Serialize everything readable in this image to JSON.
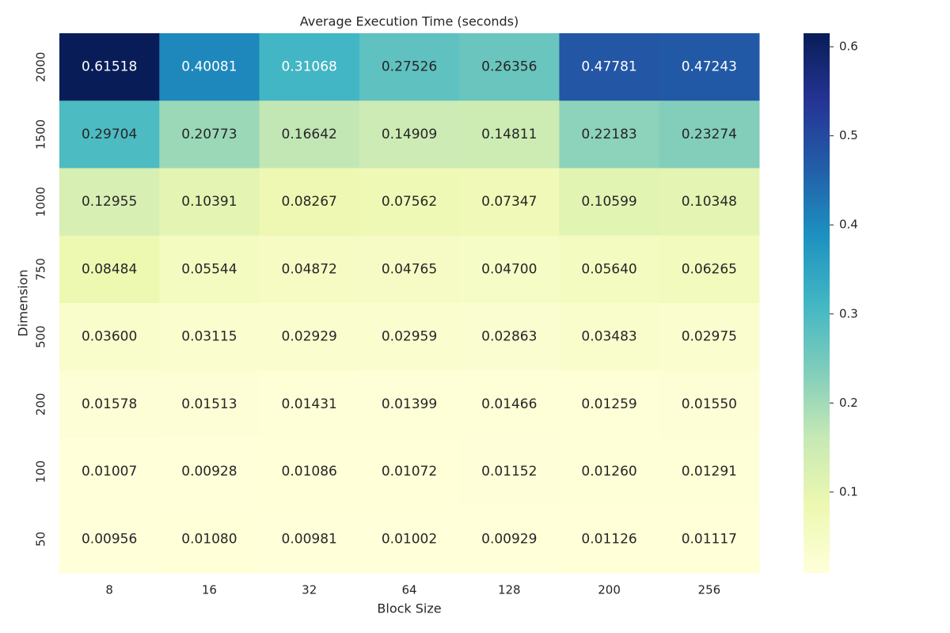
{
  "chart_data": {
    "type": "heatmap",
    "title": "Average Execution Time (seconds)",
    "x_label": "Block Size",
    "y_label": "Dimension",
    "x_categories": [
      8,
      16,
      32,
      64,
      128,
      200,
      256
    ],
    "y_categories": [
      2000,
      1500,
      1000,
      750,
      500,
      200,
      100,
      50
    ],
    "values": [
      [
        0.61518,
        0.40081,
        0.31068,
        0.27526,
        0.26356,
        0.47781,
        0.47243
      ],
      [
        0.29704,
        0.20773,
        0.16642,
        0.14909,
        0.14811,
        0.22183,
        0.23274
      ],
      [
        0.12955,
        0.10391,
        0.08267,
        0.07562,
        0.07347,
        0.10599,
        0.10348
      ],
      [
        0.08484,
        0.05544,
        0.04872,
        0.04765,
        0.047,
        0.0564,
        0.06265
      ],
      [
        0.036,
        0.03115,
        0.02929,
        0.02959,
        0.02863,
        0.03483,
        0.02975
      ],
      [
        0.01578,
        0.01513,
        0.01431,
        0.01399,
        0.01466,
        0.01259,
        0.0155
      ],
      [
        0.01007,
        0.00928,
        0.01086,
        0.01072,
        0.01152,
        0.0126,
        0.01291
      ],
      [
        0.00956,
        0.0108,
        0.00981,
        0.01002,
        0.00929,
        0.01126,
        0.01117
      ]
    ],
    "value_labels": [
      [
        "0.61518",
        "0.40081",
        "0.31068",
        "0.27526",
        "0.26356",
        "0.47781",
        "0.47243"
      ],
      [
        "0.29704",
        "0.20773",
        "0.16642",
        "0.14909",
        "0.14811",
        "0.22183",
        "0.23274"
      ],
      [
        "0.12955",
        "0.10391",
        "0.08267",
        "0.07562",
        "0.07347",
        "0.10599",
        "0.10348"
      ],
      [
        "0.08484",
        "0.05544",
        "0.04872",
        "0.04765",
        "0.04700",
        "0.05640",
        "0.06265"
      ],
      [
        "0.03600",
        "0.03115",
        "0.02929",
        "0.02959",
        "0.02863",
        "0.03483",
        "0.02975"
      ],
      [
        "0.01578",
        "0.01513",
        "0.01431",
        "0.01399",
        "0.01466",
        "0.01259",
        "0.01550"
      ],
      [
        "0.01007",
        "0.00928",
        "0.01086",
        "0.01072",
        "0.01152",
        "0.01260",
        "0.01291"
      ],
      [
        "0.00956",
        "0.01080",
        "0.00981",
        "0.01002",
        "0.00929",
        "0.01126",
        "0.01117"
      ]
    ],
    "clim": [
      0.00928,
      0.61518
    ],
    "colorbar_ticks": [
      0.1,
      0.2,
      0.3,
      0.4,
      0.5,
      0.6
    ],
    "colormap": [
      "#ffffd9",
      "#edf8b1",
      "#c7e9b4",
      "#7fcdbb",
      "#41b6c4",
      "#1d91c0",
      "#225ea8",
      "#253494",
      "#081d58"
    ]
  }
}
